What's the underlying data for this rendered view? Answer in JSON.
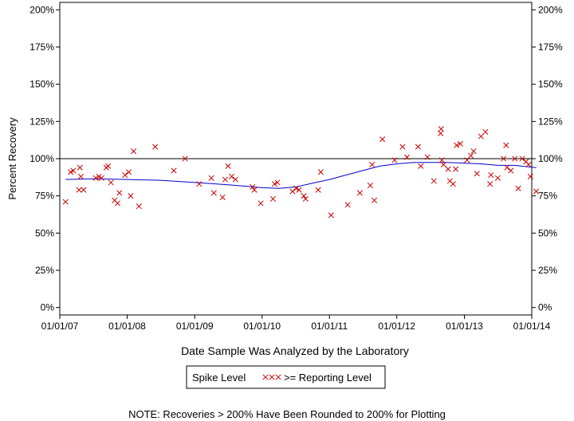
{
  "chart_data": {
    "type": "scatter",
    "title": "",
    "xlabel": "Date Sample Was Analyzed by the Laboratory",
    "ylabel": "Percent Recovery",
    "xlim": [
      "2007-01-01",
      "2014-01-01"
    ],
    "ylim": [
      -5,
      205
    ],
    "x_ticks": [
      "01/01/07",
      "01/01/08",
      "01/01/09",
      "01/01/10",
      "01/01/11",
      "01/01/12",
      "01/01/13",
      "01/01/14"
    ],
    "x_tick_dates": [
      "2007-01-01",
      "2008-01-01",
      "2009-01-01",
      "2010-01-01",
      "2011-01-01",
      "2012-01-01",
      "2013-01-01",
      "2014-01-01"
    ],
    "y_ticks": [
      0,
      25,
      50,
      75,
      100,
      125,
      150,
      175,
      200
    ],
    "y_tick_labels": [
      "0%",
      "25%",
      "50%",
      "75%",
      "100%",
      "125%",
      "150%",
      "175%",
      "200%"
    ],
    "reference_line": 100,
    "grid": false,
    "legend": {
      "placement": "bottom-center",
      "title": "Spike Level",
      "entries": [
        {
          "symbol": "xxx",
          "label": ">= Reporting Level",
          "color": "#cc0000"
        }
      ]
    },
    "note": "NOTE: Recoveries > 200% Have Been Rounded to 200% for Plotting",
    "colors": {
      "points": "#cc0000",
      "trend": "#0000cc",
      "reference": "#000000"
    },
    "series": [
      {
        "marker": "x",
        "color": "#cc0000",
        "points": [
          [
            "2007-02-01",
            71
          ],
          [
            "2007-03-01",
            91
          ],
          [
            "2007-03-15",
            92
          ],
          [
            "2007-04-15",
            79
          ],
          [
            "2007-04-20",
            94
          ],
          [
            "2007-04-25",
            88
          ],
          [
            "2007-05-10",
            79
          ],
          [
            "2007-07-15",
            87
          ],
          [
            "2007-08-01",
            88
          ],
          [
            "2007-08-15",
            87
          ],
          [
            "2007-09-10",
            94
          ],
          [
            "2007-09-20",
            95
          ],
          [
            "2007-10-05",
            84
          ],
          [
            "2007-10-25",
            72
          ],
          [
            "2007-11-10",
            70
          ],
          [
            "2007-11-20",
            77
          ],
          [
            "2007-12-20",
            89
          ],
          [
            "2008-01-10",
            91
          ],
          [
            "2008-01-20",
            75
          ],
          [
            "2008-02-05",
            105
          ],
          [
            "2008-03-05",
            68
          ],
          [
            "2008-06-01",
            108
          ],
          [
            "2008-09-10",
            92
          ],
          [
            "2008-11-10",
            100
          ],
          [
            "2009-01-25",
            83
          ],
          [
            "2009-04-01",
            87
          ],
          [
            "2009-04-15",
            77
          ],
          [
            "2009-06-01",
            74
          ],
          [
            "2009-06-15",
            86
          ],
          [
            "2009-07-01",
            95
          ],
          [
            "2009-07-20",
            88
          ],
          [
            "2009-08-10",
            86
          ],
          [
            "2009-11-20",
            79
          ],
          [
            "2009-11-10",
            81
          ],
          [
            "2009-12-25",
            70
          ],
          [
            "2010-03-01",
            73
          ],
          [
            "2010-03-10",
            83
          ],
          [
            "2010-03-25",
            84
          ],
          [
            "2010-06-15",
            78
          ],
          [
            "2010-07-05",
            80
          ],
          [
            "2010-07-20",
            79
          ],
          [
            "2010-08-15",
            75
          ],
          [
            "2010-08-25",
            73
          ],
          [
            "2010-11-01",
            79
          ],
          [
            "2010-11-15",
            91
          ],
          [
            "2011-01-10",
            62
          ],
          [
            "2011-04-10",
            69
          ],
          [
            "2011-06-15",
            77
          ],
          [
            "2011-08-20",
            96
          ],
          [
            "2011-08-10",
            82
          ],
          [
            "2011-09-01",
            72
          ],
          [
            "2011-10-15",
            113
          ],
          [
            "2011-12-20",
            99
          ],
          [
            "2012-02-01",
            108
          ],
          [
            "2012-02-25",
            101
          ],
          [
            "2012-04-25",
            108
          ],
          [
            "2012-05-10",
            95
          ],
          [
            "2012-06-15",
            101
          ],
          [
            "2012-07-20",
            85
          ],
          [
            "2012-08-25",
            117
          ],
          [
            "2012-08-28",
            120
          ],
          [
            "2012-09-01",
            99
          ],
          [
            "2012-09-10",
            96
          ],
          [
            "2012-10-05",
            93
          ],
          [
            "2012-10-15",
            85
          ],
          [
            "2012-11-01",
            83
          ],
          [
            "2012-11-15",
            93
          ],
          [
            "2012-11-20",
            109
          ],
          [
            "2012-12-10",
            110
          ],
          [
            "2013-01-15",
            99
          ],
          [
            "2013-02-05",
            102
          ],
          [
            "2013-02-20",
            105
          ],
          [
            "2013-03-10",
            90
          ],
          [
            "2013-04-01",
            115
          ],
          [
            "2013-04-25",
            118
          ],
          [
            "2013-05-20",
            83
          ],
          [
            "2013-05-25",
            89
          ],
          [
            "2013-07-01",
            87
          ],
          [
            "2013-08-01",
            100
          ],
          [
            "2013-08-15",
            109
          ],
          [
            "2013-08-20",
            94
          ],
          [
            "2013-09-10",
            92
          ],
          [
            "2013-10-01",
            100
          ],
          [
            "2013-10-20",
            80
          ],
          [
            "2013-11-10",
            100
          ],
          [
            "2013-12-01",
            98
          ],
          [
            "2013-12-15",
            96
          ],
          [
            "2013-12-25",
            88
          ],
          [
            "2014-01-25",
            78
          ]
        ]
      }
    ],
    "trend": {
      "color": "#0000cc",
      "points": [
        [
          "2007-02-01",
          86
        ],
        [
          "2007-07-01",
          86.5
        ],
        [
          "2008-01-01",
          86
        ],
        [
          "2008-07-01",
          85.5
        ],
        [
          "2009-01-01",
          84
        ],
        [
          "2009-07-01",
          82.5
        ],
        [
          "2009-10-01",
          81.5
        ],
        [
          "2010-01-01",
          80.5
        ],
        [
          "2010-04-01",
          80
        ],
        [
          "2010-07-01",
          81
        ],
        [
          "2010-10-01",
          83.5
        ],
        [
          "2011-01-01",
          86
        ],
        [
          "2011-04-01",
          89
        ],
        [
          "2011-07-01",
          92
        ],
        [
          "2011-10-01",
          95
        ],
        [
          "2012-01-01",
          96.5
        ],
        [
          "2012-04-01",
          97.5
        ],
        [
          "2012-07-01",
          97.5
        ],
        [
          "2012-10-01",
          97.5
        ],
        [
          "2013-01-01",
          97
        ],
        [
          "2013-04-01",
          96.5
        ],
        [
          "2013-07-01",
          95.5
        ],
        [
          "2013-10-01",
          95.5
        ],
        [
          "2014-01-25",
          94
        ]
      ]
    }
  }
}
